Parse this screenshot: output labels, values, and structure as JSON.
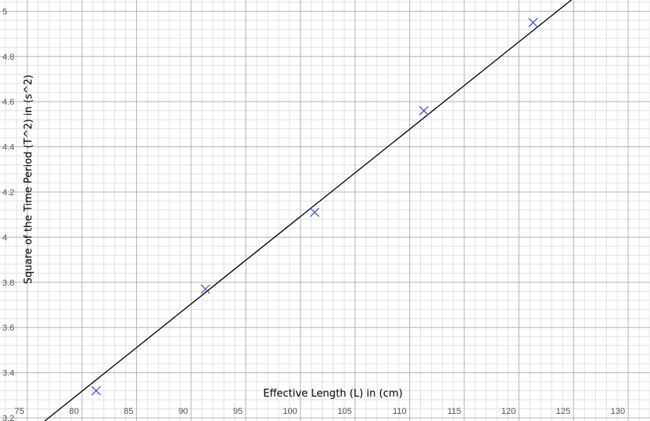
{
  "chart_data": {
    "type": "scatter",
    "title": "",
    "xlabel": "Effective Length (L) in (cm)",
    "ylabel": "Square of the Time Period (T^2) in (s^2)",
    "xlim": [
      72.5,
      132.0
    ],
    "ylim": [
      3.186,
      5.05
    ],
    "grid": true,
    "x_major_ticks": [
      75,
      80,
      85,
      90,
      95,
      100,
      105,
      110,
      115,
      120,
      125,
      130
    ],
    "x_tick_labels": [
      "75",
      "80",
      "85",
      "90",
      "95",
      "100",
      "105",
      "110",
      "115",
      "120",
      "125",
      "130"
    ],
    "y_major_ticks": [
      3.2,
      3.4,
      3.6,
      3.8,
      4.0,
      4.2,
      4.4,
      4.6,
      4.8,
      5.0
    ],
    "y_tick_labels": [
      "3.2",
      "3.4",
      "3.6",
      "3.8",
      "4",
      "4.2",
      "4.4",
      "4.6",
      "4.8",
      "5"
    ],
    "series": [
      {
        "marker": "x",
        "color": "#3a4fc4",
        "x": [
          81.3,
          91.3,
          101.3,
          111.3,
          121.3
        ],
        "y": [
          3.32,
          3.77,
          4.11,
          4.56,
          4.95
        ]
      }
    ],
    "fit_line": {
      "color": "#000000",
      "x": [
        76.0,
        125.0
      ],
      "y": [
        3.163,
        5.058
      ]
    },
    "colors": {
      "major_grid": "#b4b4b4",
      "minor_grid": "#e2e2e2",
      "tick_label": "#555555"
    }
  }
}
